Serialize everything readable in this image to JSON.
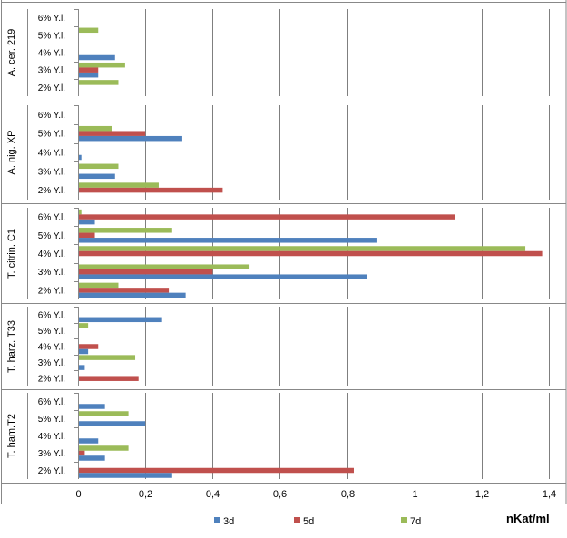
{
  "chart_data": {
    "type": "bar",
    "orientation": "horizontal",
    "xlim": [
      0,
      1.4
    ],
    "x_ticks": [
      "0",
      "0,2",
      "0,4",
      "0,6",
      "0,8",
      "1",
      "1,2",
      "1,4"
    ],
    "x_unit": "nKat/ml",
    "grid": true,
    "legend_position": "bottom",
    "colors": {
      "3d": "#4F81BD",
      "5d": "#C0504D",
      "7d": "#9BBB59"
    },
    "series_names": [
      "3d",
      "5d",
      "7d"
    ],
    "groups": [
      {
        "name": "A. cer. 219",
        "categories": [
          "6% Y.l.",
          "5% Y.l.",
          "4% Y.l.",
          "3% Y.l.",
          "2% Y.l."
        ],
        "3d": [
          0,
          0,
          0.11,
          0.06,
          0
        ],
        "5d": [
          0,
          0,
          0,
          0.06,
          0
        ],
        "7d": [
          0,
          0.06,
          0,
          0.14,
          0.12
        ]
      },
      {
        "name": "A. nig. XP",
        "categories": [
          "6% Y.l.",
          "5% Y.l.",
          "4% Y.l.",
          "3% Y.l.",
          "2% Y.l."
        ],
        "3d": [
          0,
          0.31,
          0.01,
          0.11,
          0
        ],
        "5d": [
          0,
          0.2,
          0,
          0,
          0.43
        ],
        "7d": [
          0,
          0.1,
          0,
          0.12,
          0.24
        ]
      },
      {
        "name": "T. citrin. C1",
        "categories": [
          "6% Y.l.",
          "5% Y.l.",
          "4% Y.l.",
          "3% Y.l.",
          "2% Y.l."
        ],
        "3d": [
          0.05,
          0.89,
          0,
          0.86,
          0.32
        ],
        "5d": [
          1.12,
          0.05,
          1.38,
          0.4,
          0.27
        ],
        "7d": [
          0.01,
          0.28,
          1.33,
          0.51,
          0.12
        ]
      },
      {
        "name": "T. harz. T33",
        "categories": [
          "6% Y.l.",
          "5% Y.l.",
          "4% Y.l.",
          "3% Y.l.",
          "2% Y.l."
        ],
        "3d": [
          0.25,
          0,
          0.03,
          0.02,
          0
        ],
        "5d": [
          0,
          0,
          0.06,
          0,
          0.18
        ],
        "7d": [
          0,
          0.03,
          0,
          0.17,
          0
        ]
      },
      {
        "name": "T. ham.T2",
        "categories": [
          "6% Y.l.",
          "5% Y.l.",
          "4% Y.l.",
          "3% Y.l.",
          "2% Y.l."
        ],
        "3d": [
          0.08,
          0.2,
          0.06,
          0.08,
          0.28
        ],
        "5d": [
          0,
          0,
          0,
          0.02,
          0.82
        ],
        "7d": [
          0,
          0.15,
          0,
          0.15,
          0
        ]
      }
    ]
  }
}
